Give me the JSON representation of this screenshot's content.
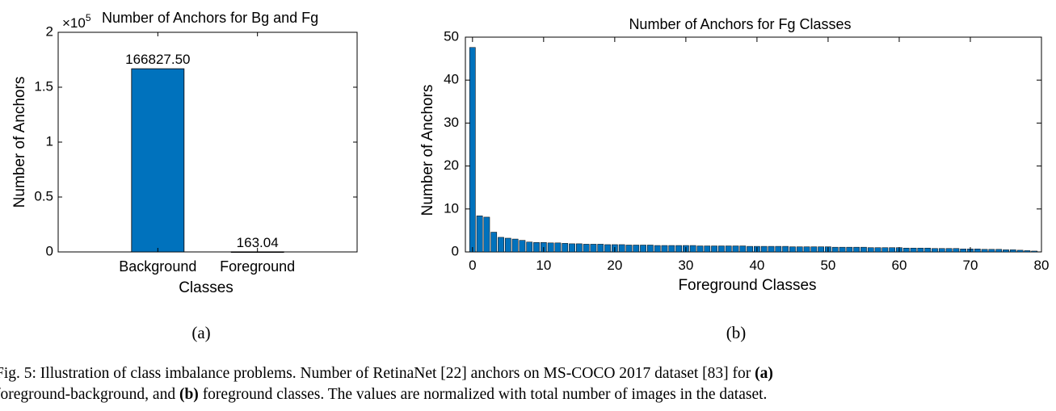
{
  "chart_data": [
    {
      "type": "bar",
      "title": "Number of Anchors for Bg and Fg",
      "xlabel": "Classes",
      "ylabel": "Number of Anchors",
      "y_multiplier_label": "×10",
      "y_multiplier_exponent": "5",
      "categories": [
        "Background",
        "Foreground"
      ],
      "values": [
        166827.5,
        163.04
      ],
      "data_labels": [
        "166827.50",
        "163.04"
      ],
      "ylim": [
        0,
        200000
      ],
      "yticks": [
        0,
        50000,
        100000,
        150000,
        200000
      ],
      "ytick_labels": [
        "0",
        "0.5",
        "1",
        "1.5",
        "2"
      ],
      "grid": false,
      "bar_color": "#0072bd",
      "panel_label": "(a)"
    },
    {
      "type": "bar",
      "title": "Number of Anchors for Fg Classes",
      "xlabel": "Foreground Classes",
      "ylabel": "Number of Anchors",
      "x": [
        0,
        1,
        2,
        3,
        4,
        5,
        6,
        7,
        8,
        9,
        10,
        11,
        12,
        13,
        14,
        15,
        16,
        17,
        18,
        19,
        20,
        21,
        22,
        23,
        24,
        25,
        26,
        27,
        28,
        29,
        30,
        31,
        32,
        33,
        34,
        35,
        36,
        37,
        38,
        39,
        40,
        41,
        42,
        43,
        44,
        45,
        46,
        47,
        48,
        49,
        50,
        51,
        52,
        53,
        54,
        55,
        56,
        57,
        58,
        59,
        60,
        61,
        62,
        63,
        64,
        65,
        66,
        67,
        68,
        69,
        70,
        71,
        72,
        73,
        74,
        75,
        76,
        77,
        78,
        79
      ],
      "values": [
        47.6,
        8.4,
        8.1,
        4.6,
        3.4,
        3.2,
        3.0,
        2.7,
        2.3,
        2.2,
        2.2,
        2.1,
        2.1,
        2.0,
        1.9,
        1.9,
        1.8,
        1.8,
        1.8,
        1.7,
        1.7,
        1.7,
        1.6,
        1.6,
        1.6,
        1.6,
        1.5,
        1.5,
        1.5,
        1.5,
        1.5,
        1.5,
        1.4,
        1.4,
        1.4,
        1.4,
        1.4,
        1.4,
        1.4,
        1.3,
        1.3,
        1.3,
        1.3,
        1.3,
        1.3,
        1.2,
        1.2,
        1.2,
        1.2,
        1.2,
        1.2,
        1.1,
        1.1,
        1.1,
        1.1,
        1.1,
        1.0,
        1.0,
        1.0,
        1.0,
        1.0,
        0.9,
        0.9,
        0.9,
        0.9,
        0.8,
        0.8,
        0.8,
        0.8,
        0.7,
        0.7,
        0.7,
        0.6,
        0.6,
        0.6,
        0.5,
        0.5,
        0.4,
        0.3,
        0.2
      ],
      "xlim": [
        -1,
        80
      ],
      "ylim": [
        0,
        50
      ],
      "xticks": [
        0,
        10,
        20,
        30,
        40,
        50,
        60,
        70,
        80
      ],
      "xtick_labels": [
        "0",
        "10",
        "20",
        "30",
        "40",
        "50",
        "60",
        "70",
        "80"
      ],
      "yticks": [
        0,
        10,
        20,
        30,
        40,
        50
      ],
      "ytick_labels": [
        "0",
        "10",
        "20",
        "30",
        "40",
        "50"
      ],
      "grid": false,
      "bar_color": "#0072bd",
      "panel_label": "(b)"
    }
  ],
  "caption": {
    "prefix": "Fig. 5: Illustration of class imbalance problems. Number of RetinaNet [22] anchors on MS-COCO 2017 dataset [83] for ",
    "a_marker": "(a)",
    "line2_start": "foreground-background, and ",
    "b_marker": "(b)",
    "suffix": " foreground classes. The values are normalized with total number of images in the dataset."
  }
}
